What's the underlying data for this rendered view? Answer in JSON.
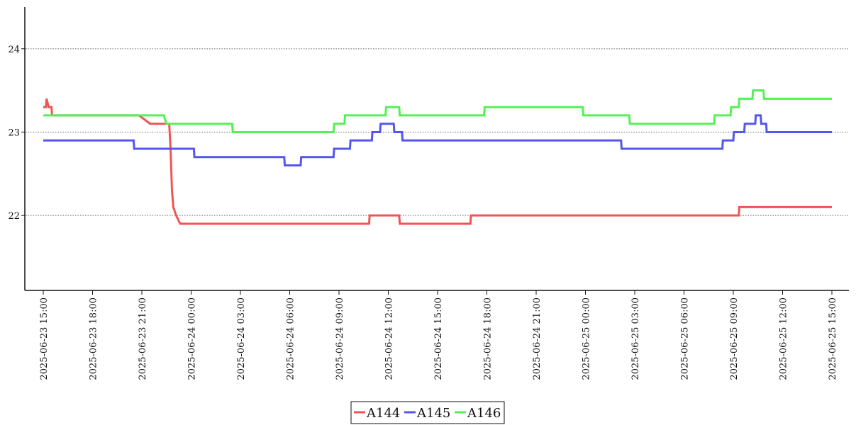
{
  "chart_data": {
    "type": "line",
    "title": "",
    "xlabel": "",
    "ylabel": "",
    "x_ticks": [
      "2025-06-23 15:00",
      "2025-06-23 18:00",
      "2025-06-23 21:00",
      "2025-06-24 00:00",
      "2025-06-24 03:00",
      "2025-06-24 06:00",
      "2025-06-24 09:00",
      "2025-06-24 12:00",
      "2025-06-24 15:00",
      "2025-06-24 18:00",
      "2025-06-24 21:00",
      "2025-06-25 00:00",
      "2025-06-25 03:00",
      "2025-06-25 06:00",
      "2025-06-25 09:00",
      "2025-06-25 12:00",
      "2025-06-25 15:00"
    ],
    "xlim": [
      "2025-06-23 15:00",
      "2025-06-25 15:00"
    ],
    "y_ticks": [
      "22",
      "23",
      "24"
    ],
    "ylim": [
      21.1,
      24.5
    ],
    "grid": "horizontal dotted",
    "legend_position": "bottom-center",
    "series": [
      {
        "name": "A144",
        "color": "#f05555",
        "points": [
          [
            "2025-06-23 15:00",
            23.3
          ],
          [
            "2025-06-23 15:10",
            23.3
          ],
          [
            "2025-06-23 15:12",
            23.4
          ],
          [
            "2025-06-23 15:20",
            23.3
          ],
          [
            "2025-06-23 15:30",
            23.3
          ],
          [
            "2025-06-23 15:32",
            23.2
          ],
          [
            "2025-06-23 20:50",
            23.2
          ],
          [
            "2025-06-23 21:30",
            23.1
          ],
          [
            "2025-06-23 22:40",
            23.1
          ],
          [
            "2025-06-23 22:45",
            22.8
          ],
          [
            "2025-06-23 22:50",
            22.3
          ],
          [
            "2025-06-23 22:55",
            22.1
          ],
          [
            "2025-06-23 23:05",
            22.0
          ],
          [
            "2025-06-23 23:20",
            21.9
          ],
          [
            "2025-06-24 10:50",
            21.9
          ],
          [
            "2025-06-24 10:52",
            22.0
          ],
          [
            "2025-06-24 12:40",
            22.0
          ],
          [
            "2025-06-24 12:42",
            21.9
          ],
          [
            "2025-06-24 17:00",
            21.9
          ],
          [
            "2025-06-24 17:02",
            22.0
          ],
          [
            "2025-06-25 09:20",
            22.0
          ],
          [
            "2025-06-25 09:22",
            22.1
          ],
          [
            "2025-06-25 15:00",
            22.1
          ]
        ]
      },
      {
        "name": "A145",
        "color": "#5555f0",
        "points": [
          [
            "2025-06-23 15:00",
            22.9
          ],
          [
            "2025-06-23 20:30",
            22.9
          ],
          [
            "2025-06-23 20:32",
            22.8
          ],
          [
            "2025-06-24 00:10",
            22.8
          ],
          [
            "2025-06-24 00:12",
            22.7
          ],
          [
            "2025-06-24 05:40",
            22.7
          ],
          [
            "2025-06-24 05:42",
            22.6
          ],
          [
            "2025-06-24 06:40",
            22.6
          ],
          [
            "2025-06-24 06:42",
            22.7
          ],
          [
            "2025-06-24 08:40",
            22.7
          ],
          [
            "2025-06-24 08:42",
            22.8
          ],
          [
            "2025-06-24 09:40",
            22.8
          ],
          [
            "2025-06-24 09:42",
            22.9
          ],
          [
            "2025-06-24 11:00",
            22.9
          ],
          [
            "2025-06-24 11:02",
            23.0
          ],
          [
            "2025-06-24 11:30",
            23.0
          ],
          [
            "2025-06-24 11:32",
            23.1
          ],
          [
            "2025-06-24 12:20",
            23.1
          ],
          [
            "2025-06-24 12:22",
            23.0
          ],
          [
            "2025-06-24 12:50",
            23.0
          ],
          [
            "2025-06-24 12:52",
            22.9
          ],
          [
            "2025-06-25 02:10",
            22.9
          ],
          [
            "2025-06-25 02:12",
            22.8
          ],
          [
            "2025-06-25 08:20",
            22.8
          ],
          [
            "2025-06-25 08:22",
            22.9
          ],
          [
            "2025-06-25 09:00",
            22.9
          ],
          [
            "2025-06-25 09:02",
            23.0
          ],
          [
            "2025-06-25 09:40",
            23.0
          ],
          [
            "2025-06-25 09:42",
            23.1
          ],
          [
            "2025-06-25 10:20",
            23.1
          ],
          [
            "2025-06-25 10:22",
            23.2
          ],
          [
            "2025-06-25 10:40",
            23.2
          ],
          [
            "2025-06-25 10:42",
            23.1
          ],
          [
            "2025-06-25 11:00",
            23.1
          ],
          [
            "2025-06-25 11:02",
            23.0
          ],
          [
            "2025-06-25 15:00",
            23.0
          ]
        ]
      },
      {
        "name": "A146",
        "color": "#55f055",
        "points": [
          [
            "2025-06-23 15:00",
            23.2
          ],
          [
            "2025-06-23 21:00",
            23.2
          ],
          [
            "2025-06-23 22:20",
            23.2
          ],
          [
            "2025-06-23 22:30",
            23.1
          ],
          [
            "2025-06-24 02:30",
            23.1
          ],
          [
            "2025-06-24 02:32",
            23.0
          ],
          [
            "2025-06-24 08:40",
            23.0
          ],
          [
            "2025-06-24 08:42",
            23.1
          ],
          [
            "2025-06-24 09:20",
            23.1
          ],
          [
            "2025-06-24 09:22",
            23.2
          ],
          [
            "2025-06-24 11:50",
            23.2
          ],
          [
            "2025-06-24 11:52",
            23.3
          ],
          [
            "2025-06-24 12:40",
            23.3
          ],
          [
            "2025-06-24 12:42",
            23.2
          ],
          [
            "2025-06-24 17:50",
            23.2
          ],
          [
            "2025-06-24 17:52",
            23.3
          ],
          [
            "2025-06-24 23:50",
            23.3
          ],
          [
            "2025-06-24 23:52",
            23.2
          ],
          [
            "2025-06-25 02:40",
            23.2
          ],
          [
            "2025-06-25 02:42",
            23.1
          ],
          [
            "2025-06-25 07:50",
            23.1
          ],
          [
            "2025-06-25 07:52",
            23.2
          ],
          [
            "2025-06-25 08:50",
            23.2
          ],
          [
            "2025-06-25 08:52",
            23.3
          ],
          [
            "2025-06-25 09:20",
            23.3
          ],
          [
            "2025-06-25 09:22",
            23.4
          ],
          [
            "2025-06-25 10:10",
            23.4
          ],
          [
            "2025-06-25 10:12",
            23.5
          ],
          [
            "2025-06-25 10:50",
            23.5
          ],
          [
            "2025-06-25 10:52",
            23.4
          ],
          [
            "2025-06-25 15:00",
            23.4
          ]
        ]
      }
    ]
  }
}
